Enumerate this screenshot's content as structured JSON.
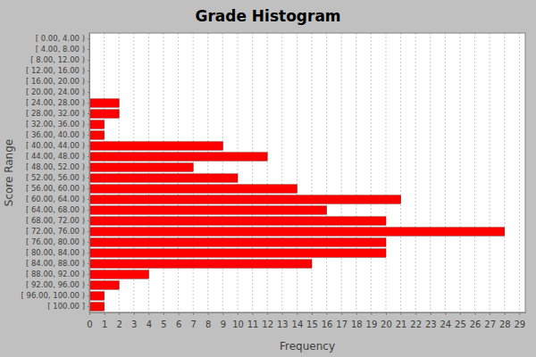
{
  "chart_data": {
    "type": "bar",
    "orientation": "horizontal",
    "title": "Grade Histogram",
    "x_label": "Frequency",
    "y_label": "Score Range",
    "categories": [
      "[ 0.00, 4.00 )",
      "[ 4.00, 8.00 )",
      "[ 8.00, 12.00 )",
      "[ 12.00, 16.00 )",
      "[ 16.00, 20.00 )",
      "[ 20.00, 24.00 )",
      "[ 24.00, 28.00 )",
      "[ 28.00, 32.00 )",
      "[ 32.00, 36.00 )",
      "[ 36.00, 40.00 )",
      "[ 40.00, 44.00 )",
      "[ 44.00, 48.00 )",
      "[ 48.00, 52.00 )",
      "[ 52.00, 56.00 )",
      "[ 56.00, 60.00 )",
      "[ 60.00, 64.00 )",
      "[ 64.00, 68.00 )",
      "[ 68.00, 72.00 )",
      "[ 72.00, 76.00 )",
      "[ 76.00, 80.00 )",
      "[ 80.00, 84.00 )",
      "[ 84.00, 88.00 )",
      "[ 88.00, 92.00 )",
      "[ 92.00, 96.00 )",
      "[ 96.00, 100.00 )",
      "[ 100.00 ]"
    ],
    "values": [
      0,
      0,
      0,
      0,
      0,
      0,
      2,
      2,
      1,
      1,
      9,
      12,
      7,
      10,
      14,
      21,
      16,
      20,
      28,
      20,
      20,
      15,
      4,
      2,
      1,
      1
    ],
    "color": "#ff0000",
    "xlim": [
      0,
      29.4
    ],
    "xticks": [
      0,
      1,
      2,
      3,
      4,
      5,
      6,
      7,
      8,
      9,
      10,
      11,
      12,
      13,
      14,
      15,
      16,
      17,
      18,
      19,
      20,
      21,
      22,
      23,
      24,
      25,
      26,
      27,
      28,
      29
    ],
    "grid": true
  }
}
